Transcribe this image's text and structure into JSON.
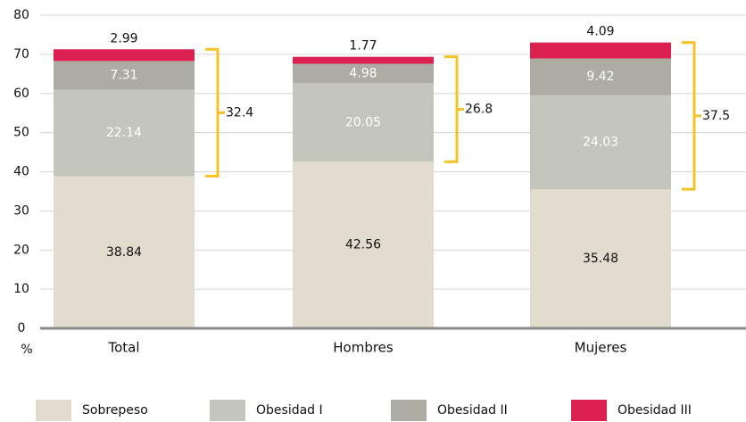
{
  "chart_data": {
    "type": "stacked_bar",
    "categories": [
      "Total",
      "Hombres",
      "Mujeres"
    ],
    "series": [
      {
        "name": "Sobrepeso",
        "color": "#e2dccf",
        "values": [
          38.84,
          42.56,
          35.48
        ]
      },
      {
        "name": "Obesidad I",
        "color": "#c5c6bb",
        "values": [
          22.14,
          20.05,
          24.03
        ]
      },
      {
        "name": "Obesidad II",
        "color": "#adaca3",
        "values": [
          7.31,
          4.98,
          9.42
        ]
      },
      {
        "name": "Obesidad III",
        "color": "#dc2050",
        "values": [
          2.99,
          1.77,
          4.09
        ]
      }
    ],
    "bracket_values": [
      32.4,
      26.8,
      37.5
    ],
    "bracket_color": "#f5c227",
    "ylabel": "%",
    "ylim": [
      0,
      80
    ],
    "yticks": [
      0,
      10,
      20,
      30,
      40,
      50,
      60,
      70,
      80
    ],
    "grid": true
  }
}
